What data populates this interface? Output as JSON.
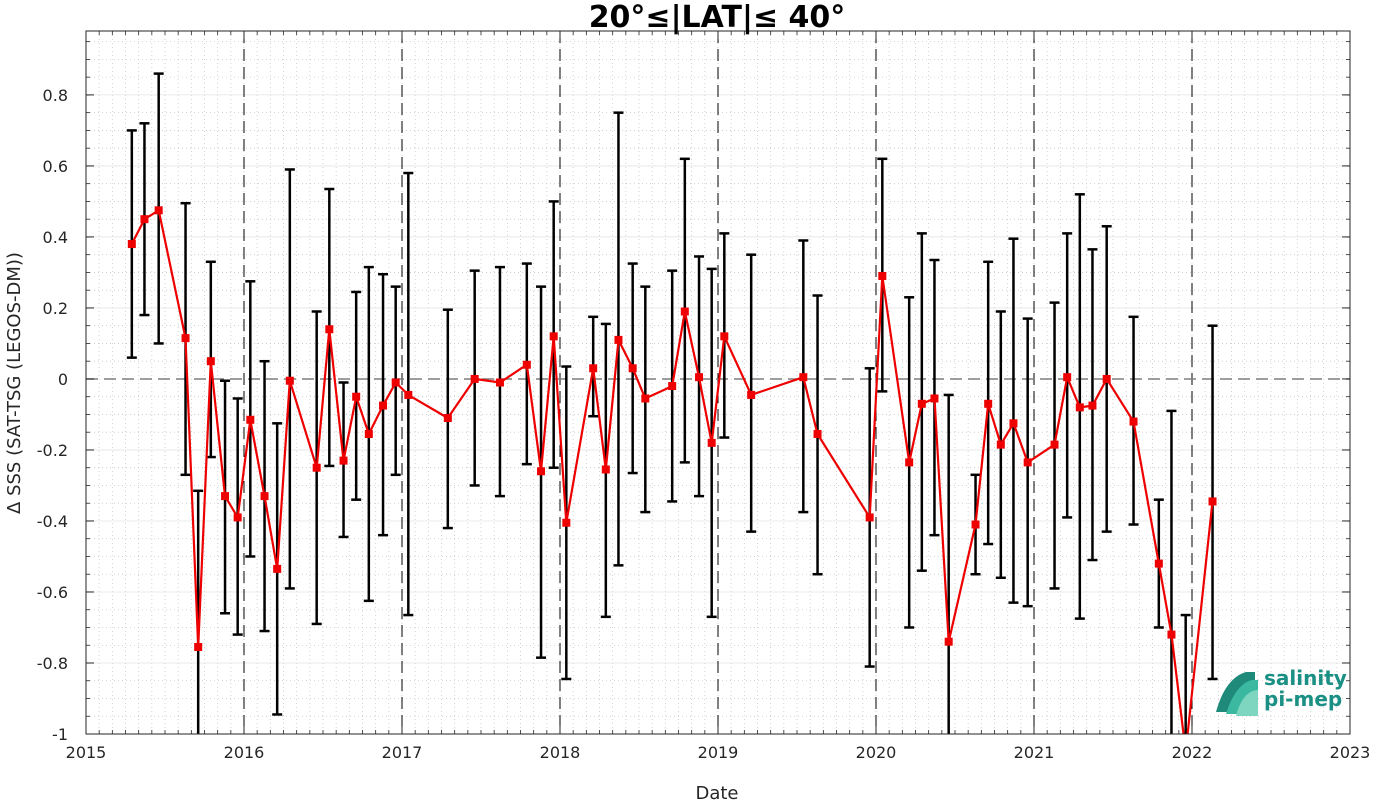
{
  "chart_data": {
    "type": "line",
    "title": "20°≤|LAT|≤ 40°",
    "xlabel": "Date",
    "ylabel": "Δ SSS (SAT-TSG (LEGOS-DM))",
    "xlim": [
      2015,
      2023
    ],
    "ylim": [
      -1,
      0.98
    ],
    "x_ticks": [
      2015,
      2016,
      2017,
      2018,
      2019,
      2020,
      2021,
      2022,
      2023
    ],
    "x_tick_labels": [
      "2015",
      "2016",
      "2017",
      "2018",
      "2019",
      "2020",
      "2021",
      "2022",
      "2023"
    ],
    "y_ticks": [
      -1,
      -0.8,
      -0.6,
      -0.4,
      -0.2,
      0,
      0.2,
      0.4,
      0.6,
      0.8
    ],
    "y_tick_labels": [
      "-1",
      "-0.8",
      "-0.6",
      "-0.4",
      "-0.2",
      "0",
      "0.2",
      "0.4",
      "0.6",
      "0.8"
    ],
    "grid": "minor dotted",
    "year_separators": "dashed vertical lines at each year",
    "zero_line": "dashed grey horizontal line at 0",
    "colors": {
      "series": "#ee0000",
      "errorbar": "#000000",
      "zero_line": "#7f7f7f"
    },
    "series": [
      {
        "x": [
          2015.29,
          2015.37,
          2015.46,
          2015.63,
          2015.71,
          2015.79,
          2015.88,
          2015.96,
          2016.04,
          2016.13,
          2016.21,
          2016.29,
          2016.46,
          2016.54,
          2016.63,
          2016.71,
          2016.79,
          2016.88,
          2016.96,
          2017.04,
          2017.29,
          2017.46,
          2017.62,
          2017.79,
          2017.88,
          2017.96,
          2018.04,
          2018.21,
          2018.29,
          2018.37,
          2018.46,
          2018.54,
          2018.71,
          2018.79,
          2018.88,
          2018.96,
          2019.04,
          2019.21,
          2019.54,
          2019.63,
          2019.96,
          2020.04,
          2020.21,
          2020.29,
          2020.37,
          2020.46,
          2020.63,
          2020.71,
          2020.79,
          2020.87,
          2020.96,
          2021.13,
          2021.21,
          2021.29,
          2021.37,
          2021.46,
          2021.63,
          2021.79,
          2021.87,
          2021.96,
          2022.13
        ],
        "values": [
          0.38,
          0.45,
          0.475,
          0.115,
          -0.755,
          0.05,
          -0.33,
          -0.39,
          -0.115,
          -0.33,
          -0.535,
          -0.005,
          -0.25,
          0.14,
          -0.23,
          -0.05,
          -0.155,
          -0.075,
          -0.01,
          -0.045,
          -0.11,
          0.0,
          -0.01,
          0.04,
          -0.26,
          0.12,
          -0.405,
          0.03,
          -0.255,
          0.11,
          0.03,
          -0.055,
          -0.02,
          0.19,
          0.005,
          -0.18,
          0.12,
          -0.045,
          0.005,
          -0.155,
          -0.39,
          0.29,
          -0.235,
          -0.07,
          -0.055,
          -0.74,
          -0.41,
          -0.07,
          -0.185,
          -0.125,
          -0.235,
          -0.185,
          0.005,
          -0.08,
          -0.075,
          0.0,
          -0.12,
          -0.52,
          -0.72,
          -1.05,
          -0.345
        ],
        "err_upper": [
          0.7,
          0.72,
          0.86,
          0.495,
          -0.315,
          0.33,
          -0.005,
          -0.055,
          0.275,
          0.05,
          -0.125,
          0.59,
          0.19,
          0.535,
          -0.01,
          0.245,
          0.315,
          0.295,
          0.26,
          0.58,
          0.195,
          0.305,
          0.315,
          0.325,
          0.26,
          0.5,
          0.035,
          0.175,
          0.155,
          0.75,
          0.325,
          0.26,
          0.305,
          0.62,
          0.345,
          0.31,
          0.41,
          0.35,
          0.39,
          0.235,
          0.03,
          0.62,
          0.23,
          0.41,
          0.335,
          -0.045,
          -0.27,
          0.33,
          0.19,
          0.395,
          0.17,
          0.215,
          0.41,
          0.52,
          0.365,
          0.43,
          0.175,
          -0.34,
          -0.09,
          -0.665,
          0.15
        ],
        "err_lower": [
          0.06,
          0.18,
          0.1,
          -0.27,
          -1.05,
          -0.22,
          -0.66,
          -0.72,
          -0.5,
          -0.71,
          -0.945,
          -0.59,
          -0.69,
          -0.245,
          -0.445,
          -0.34,
          -0.625,
          -0.44,
          -0.27,
          -0.665,
          -0.42,
          -0.3,
          -0.33,
          -0.24,
          -0.785,
          -0.25,
          -0.845,
          -0.105,
          -0.67,
          -0.525,
          -0.265,
          -0.375,
          -0.345,
          -0.235,
          -0.33,
          -0.67,
          -0.165,
          -0.43,
          -0.375,
          -0.55,
          -0.81,
          -0.035,
          -0.7,
          -0.54,
          -0.44,
          -1.05,
          -0.55,
          -0.465,
          -0.56,
          -0.63,
          -0.64,
          -0.59,
          -0.39,
          -0.675,
          -0.51,
          -0.43,
          -0.41,
          -0.7,
          -1.05,
          -1.05,
          -0.845
        ]
      }
    ]
  },
  "logo": {
    "line1": "salinity",
    "line2": "pi-mep",
    "text_color": "#1a8f84",
    "icon_colors": [
      "#1f8a7a",
      "#3bb8a0",
      "#7fd6c0"
    ]
  }
}
